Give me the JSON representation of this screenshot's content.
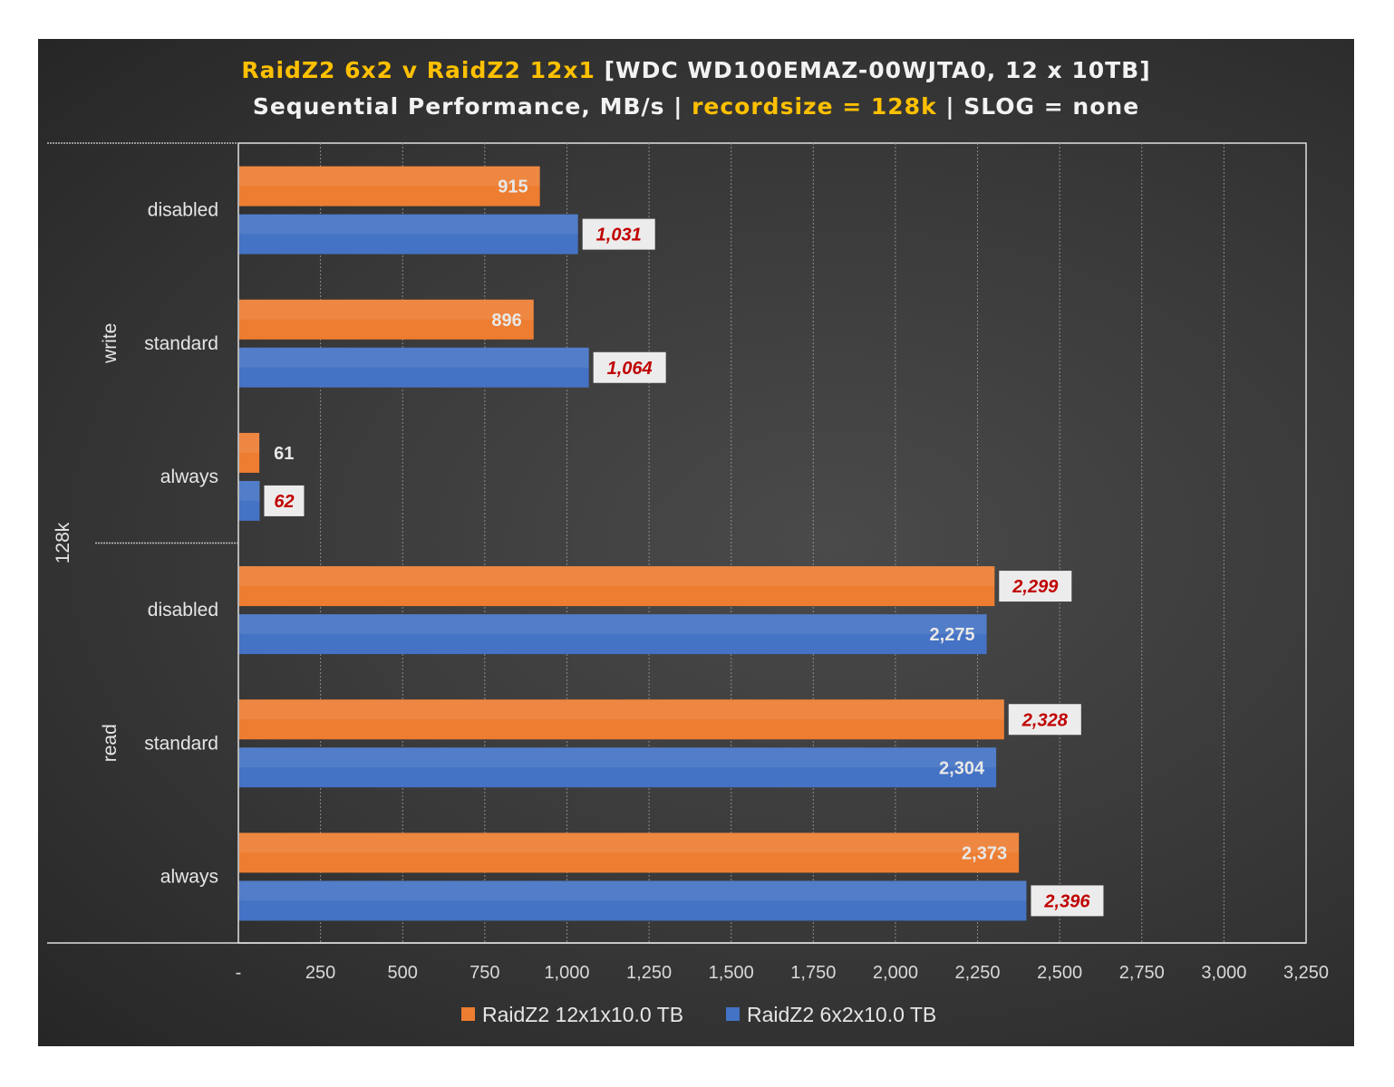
{
  "chart_data": {
    "type": "bar",
    "orientation": "horizontal",
    "title_line1": {
      "highlight": "RaidZ2 6x2 v RaidZ2 12x1",
      "rest": " [WDC WD100EMAZ-00WJTA0, 12 x 10TB]"
    },
    "title_line2": {
      "part1": "Sequential Performance, MB/s | ",
      "highlight": "recordsize = 128k",
      "part2": " | SLOG = none"
    },
    "outer_group": "128k",
    "groups": [
      {
        "name": "write",
        "categories": [
          "disabled",
          "standard",
          "always"
        ]
      },
      {
        "name": "read",
        "categories": [
          "disabled",
          "standard",
          "always"
        ]
      }
    ],
    "categories": [
      "disabled",
      "standard",
      "always",
      "disabled",
      "standard",
      "always"
    ],
    "series": [
      {
        "name": "RaidZ2 12x1x10.0 TB",
        "color": "#ed7d31",
        "values": [
          915,
          896,
          61,
          2299,
          2328,
          2373
        ],
        "labels": [
          "915",
          "896",
          "61",
          "2,299",
          "2,328",
          "2,373"
        ]
      },
      {
        "name": "RaidZ2 6x2x10.0 TB",
        "color": "#4472c4",
        "values": [
          1031,
          1064,
          62,
          2275,
          2304,
          2396
        ],
        "labels": [
          "1,031",
          "1,064",
          "62",
          "2,275",
          "2,304",
          "2,396"
        ]
      }
    ],
    "xlim": [
      0,
      3250
    ],
    "xticks": [
      0,
      250,
      500,
      750,
      1000,
      1250,
      1500,
      1750,
      2000,
      2250,
      2500,
      2750,
      3000,
      3250
    ],
    "xtick_labels": [
      "-",
      "250",
      "500",
      "750",
      "1,000",
      "1,250",
      "1,500",
      "1,750",
      "2,000",
      "2,250",
      "2,500",
      "2,750",
      "3,000",
      "3,250"
    ],
    "grid": true,
    "legend_position": "bottom"
  }
}
